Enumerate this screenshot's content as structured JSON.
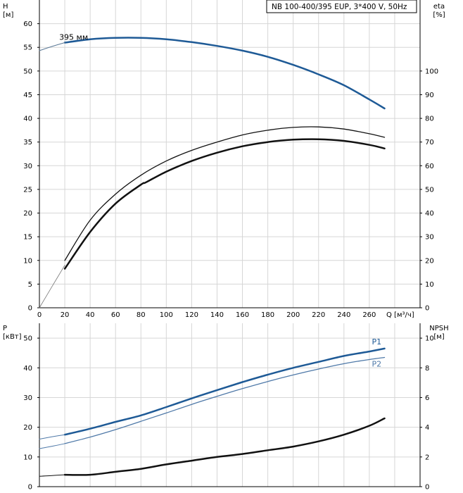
{
  "chart_data": [
    {
      "type": "line",
      "title": "NB 100-400/395 EUP, 3*400 V, 50Hz",
      "left_axis": {
        "label": "H",
        "unit": "[м]",
        "ylim": [
          0,
          65
        ],
        "ticks": [
          0,
          5,
          10,
          15,
          20,
          25,
          30,
          35,
          40,
          45,
          50,
          55,
          60
        ]
      },
      "right_axis": {
        "label": "eta",
        "unit": "[%]",
        "ylim": [
          0,
          130
        ],
        "ticks": [
          0,
          10,
          20,
          30,
          40,
          50,
          60,
          70,
          80,
          90,
          100
        ]
      },
      "x_axis": {
        "label": "Q [м³/ч]",
        "xlim": [
          0,
          300
        ],
        "ticks": [
          0,
          20,
          40,
          60,
          80,
          100,
          120,
          140,
          160,
          180,
          200,
          220,
          240,
          260
        ]
      },
      "grid": true,
      "series": [
        {
          "name": "395 мм",
          "axis": "left",
          "color": "#1e5a96",
          "width": 2.5,
          "x": [
            20,
            40,
            60,
            80,
            100,
            120,
            140,
            160,
            180,
            200,
            220,
            240,
            260,
            272
          ],
          "y": [
            56,
            56.7,
            57,
            57,
            56.7,
            56.1,
            55.3,
            54.3,
            53,
            51.3,
            49.3,
            47,
            44,
            42.1
          ]
        },
        {
          "name": "",
          "axis": "left",
          "color": "#5a7896",
          "width": 1,
          "x": [
            0,
            10,
            20
          ],
          "y": [
            54.3,
            55.2,
            56
          ]
        },
        {
          "name": "",
          "axis": "right",
          "color": "#111111",
          "width": 1.3,
          "x": [
            20,
            40,
            60,
            80,
            100,
            120,
            140,
            160,
            180,
            200,
            220,
            240,
            260,
            272
          ],
          "y": [
            20,
            37,
            48,
            56,
            62,
            66.5,
            70,
            73,
            75,
            76.2,
            76.4,
            75.5,
            73.5,
            72
          ]
        },
        {
          "name": "",
          "axis": "right",
          "color": "#111111",
          "width": 2.5,
          "x": [
            20,
            40,
            60,
            80,
            84,
            100,
            120,
            140,
            160,
            180,
            200,
            220,
            240,
            260,
            272
          ],
          "y": [
            16.5,
            32,
            44,
            52,
            53,
            57.5,
            62,
            65.5,
            68.2,
            70,
            71,
            71.2,
            70.5,
            68.8,
            67.3
          ]
        },
        {
          "name": "",
          "axis": "right",
          "color": "#777777",
          "width": 0.8,
          "x": [
            0,
            10,
            20
          ],
          "y": [
            0,
            9,
            18
          ]
        }
      ]
    },
    {
      "type": "line",
      "left_axis": {
        "label": "P",
        "unit": "[кВт]",
        "ylim": [
          0,
          55
        ],
        "ticks": [
          0,
          10,
          20,
          30,
          40,
          50
        ]
      },
      "right_axis": {
        "label": "NPSH",
        "unit": "[м]",
        "ylim": [
          0,
          11
        ],
        "ticks": [
          0,
          2,
          4,
          6,
          8,
          10
        ]
      },
      "x_axis": {
        "xlim": [
          0,
          300
        ]
      },
      "grid": true,
      "series": [
        {
          "name": "P1",
          "axis": "left",
          "color": "#1e5a96",
          "width": 2.5,
          "label_visible": true,
          "x": [
            20,
            40,
            60,
            80,
            100,
            120,
            140,
            160,
            180,
            200,
            220,
            240,
            260,
            272
          ],
          "y": [
            17.5,
            19.5,
            21.8,
            24,
            26.8,
            29.7,
            32.5,
            35.2,
            37.7,
            40,
            42,
            44,
            45.5,
            46.5
          ]
        },
        {
          "name": "",
          "axis": "left",
          "color": "#4f79a8",
          "width": 1,
          "x": [
            0,
            10,
            20
          ],
          "y": [
            16,
            16.8,
            17.5
          ]
        },
        {
          "name": "P2",
          "axis": "left",
          "color": "#4f79a8",
          "width": 1.3,
          "label_visible": true,
          "x": [
            20,
            40,
            60,
            80,
            100,
            120,
            140,
            160,
            180,
            200,
            220,
            240,
            260,
            272
          ],
          "y": [
            14.5,
            16.7,
            19.2,
            22,
            24.8,
            27.7,
            30.4,
            33,
            35.4,
            37.6,
            39.6,
            41.4,
            42.8,
            43.5
          ]
        },
        {
          "name": "",
          "axis": "left",
          "color": "#4f79a8",
          "width": 1,
          "x": [
            0,
            10,
            20
          ],
          "y": [
            12.8,
            13.6,
            14.5
          ]
        },
        {
          "name": "",
          "axis": "right",
          "color": "#111111",
          "width": 2.5,
          "x": [
            20,
            40,
            60,
            80,
            100,
            120,
            140,
            160,
            180,
            200,
            220,
            240,
            260,
            272
          ],
          "y": [
            0.8,
            0.8,
            1,
            1.2,
            1.5,
            1.75,
            2,
            2.2,
            2.45,
            2.7,
            3.05,
            3.5,
            4.1,
            4.6
          ]
        },
        {
          "name": "",
          "axis": "right",
          "color": "#111111",
          "width": 1,
          "x": [
            0,
            10,
            20
          ],
          "y": [
            0.7,
            0.75,
            0.8
          ]
        }
      ]
    }
  ]
}
